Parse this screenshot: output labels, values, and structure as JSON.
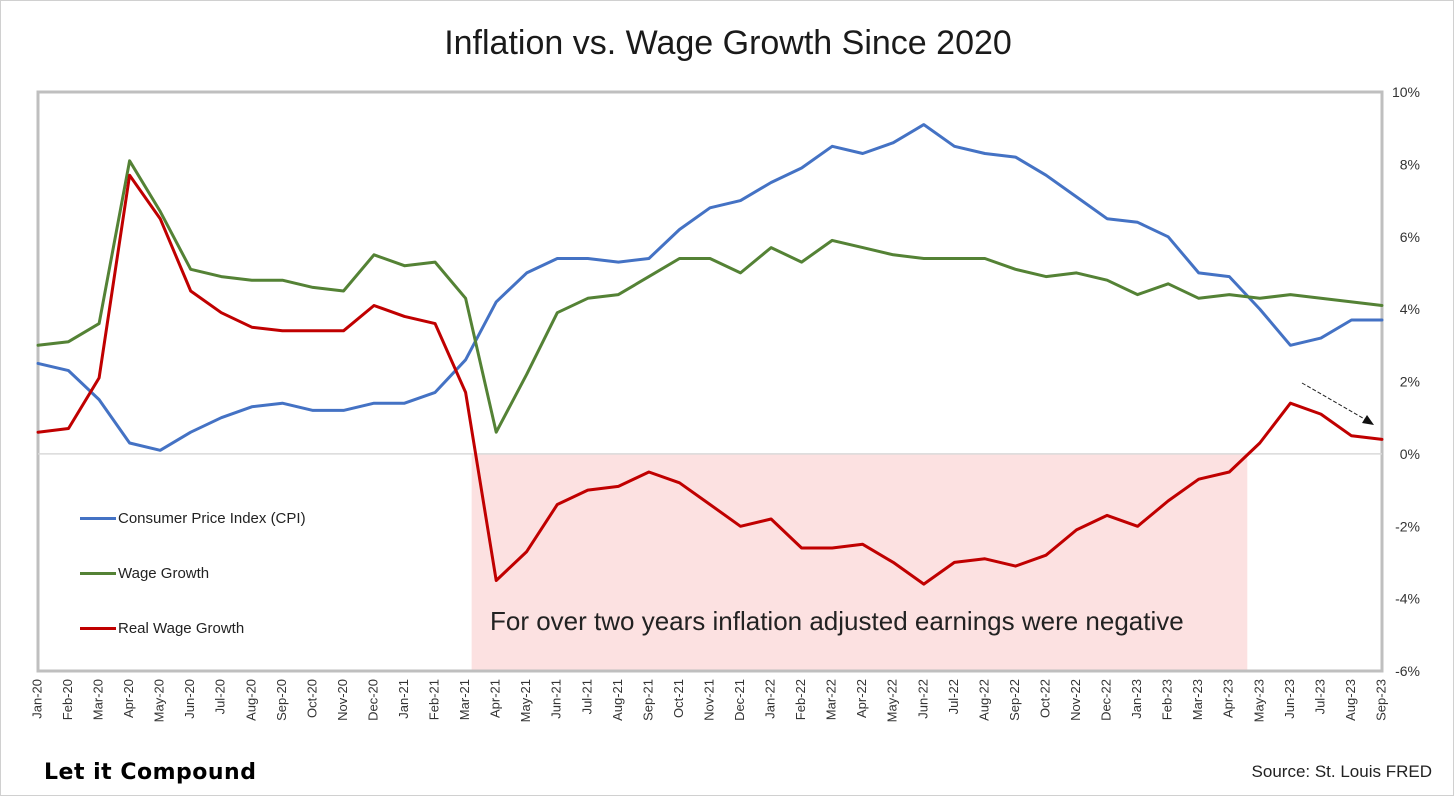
{
  "chart_data": {
    "type": "line",
    "title": "Inflation vs. Wage Growth Since 2020",
    "xlabel": "",
    "ylabel": "",
    "ylim": [
      -6,
      10
    ],
    "y_ticks": [
      "10%",
      "8%",
      "6%",
      "4%",
      "2%",
      "0%",
      "-2%",
      "-4%",
      "-6%"
    ],
    "y_tick_values": [
      10,
      8,
      6,
      4,
      2,
      0,
      -2,
      -4,
      -6
    ],
    "categories": [
      "Jan-20",
      "Feb-20",
      "Mar-20",
      "Apr-20",
      "May-20",
      "Jun-20",
      "Jul-20",
      "Aug-20",
      "Sep-20",
      "Oct-20",
      "Nov-20",
      "Dec-20",
      "Jan-21",
      "Feb-21",
      "Mar-21",
      "Apr-21",
      "May-21",
      "Jun-21",
      "Jul-21",
      "Aug-21",
      "Sep-21",
      "Oct-21",
      "Nov-21",
      "Dec-21",
      "Jan-22",
      "Feb-22",
      "Mar-22",
      "Apr-22",
      "May-22",
      "Jun-22",
      "Jul-22",
      "Aug-22",
      "Sep-22",
      "Oct-22",
      "Nov-22",
      "Dec-22",
      "Jan-23",
      "Feb-23",
      "Mar-23",
      "Apr-23",
      "May-23",
      "Jun-23",
      "Jul-23",
      "Aug-23",
      "Sep-23"
    ],
    "series": [
      {
        "name": "Consumer Price Index (CPI)",
        "color": "#4472C4",
        "values": [
          2.5,
          2.3,
          1.5,
          0.3,
          0.1,
          0.6,
          1.0,
          1.3,
          1.4,
          1.2,
          1.2,
          1.4,
          1.4,
          1.7,
          2.6,
          4.2,
          5.0,
          5.4,
          5.4,
          5.3,
          5.4,
          6.2,
          6.8,
          7.0,
          7.5,
          7.9,
          8.5,
          8.3,
          8.6,
          9.1,
          8.5,
          8.3,
          8.2,
          7.7,
          7.1,
          6.5,
          6.4,
          6.0,
          5.0,
          4.9,
          4.0,
          3.0,
          3.2,
          3.7,
          3.7
        ]
      },
      {
        "name": "Wage Growth",
        "color": "#548235",
        "values": [
          3.0,
          3.1,
          3.6,
          8.1,
          6.7,
          5.1,
          4.9,
          4.8,
          4.8,
          4.6,
          4.5,
          5.5,
          5.2,
          5.3,
          4.3,
          0.6,
          2.2,
          3.9,
          4.3,
          4.4,
          4.9,
          5.4,
          5.4,
          5.0,
          5.7,
          5.3,
          5.9,
          5.7,
          5.5,
          5.4,
          5.4,
          5.4,
          5.1,
          4.9,
          5.0,
          4.8,
          4.4,
          4.7,
          4.3,
          4.4,
          4.3,
          4.4,
          4.3,
          4.2,
          4.1
        ]
      },
      {
        "name": "Real Wage Growth",
        "color": "#C00000",
        "values": [
          0.6,
          0.7,
          2.1,
          7.7,
          6.5,
          4.5,
          3.9,
          3.5,
          3.4,
          3.4,
          3.4,
          4.1,
          3.8,
          3.6,
          1.7,
          -3.5,
          -2.7,
          -1.4,
          -1.0,
          -0.9,
          -0.5,
          -0.8,
          -1.4,
          -2.0,
          -1.8,
          -2.6,
          -2.6,
          -2.5,
          -3.0,
          -3.6,
          -3.0,
          -2.9,
          -3.1,
          -2.8,
          -2.1,
          -1.7,
          -2.0,
          -1.3,
          -0.7,
          -0.5,
          0.3,
          1.4,
          1.1,
          0.5,
          0.4
        ]
      }
    ],
    "shaded_region": {
      "from": "Mar-21",
      "to": "Apr-23",
      "color": "#FCE1E1"
    },
    "annotation": "For over two years inflation adjusted earnings were negative",
    "legend_position": "left-middle"
  },
  "legend": {
    "cpi": "Consumer Price Index (CPI)",
    "wage": "Wage Growth",
    "real": "Real Wage Growth"
  },
  "branding": {
    "logo_text": "Let it Compound",
    "source": "Source: St. Louis FRED"
  }
}
